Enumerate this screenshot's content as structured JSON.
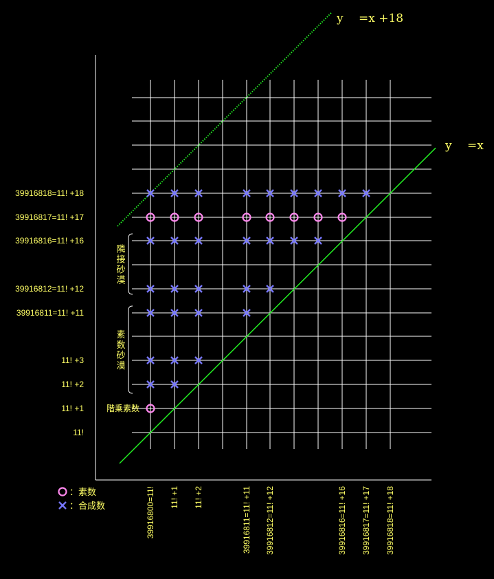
{
  "chart_data": {
    "type": "scatter",
    "title": "",
    "grid": true,
    "x": [
      {
        "label": "39916800=11!",
        "value": 0
      },
      {
        "label": "11! +1",
        "value": 1
      },
      {
        "label": "11! +2",
        "value": 2
      },
      {
        "label": "",
        "value": 3
      },
      {
        "label": "39916811=11! +11",
        "value": 11
      },
      {
        "label": "39916812=11! +12",
        "value": 12
      },
      {
        "label": "",
        "value": 13
      },
      {
        "label": "",
        "value": 14
      },
      {
        "label": "39916816=11! +16",
        "value": 16
      },
      {
        "label": "39916817=11! +17",
        "value": 17
      },
      {
        "label": "39916818=11! +18",
        "value": 18
      }
    ],
    "y": [
      {
        "label": "11!",
        "value": 0
      },
      {
        "label": "11! +1",
        "value": 1
      },
      {
        "label": "11! +2",
        "value": 2
      },
      {
        "label": "11! +3",
        "value": 3
      },
      {
        "label": "",
        "value": 4
      },
      {
        "label": "39916811=11! +11",
        "value": 11
      },
      {
        "label": "39916812=11! +12",
        "value": 12
      },
      {
        "label": "",
        "value": 13
      },
      {
        "label": "39916816=11! +16",
        "value": 16
      },
      {
        "label": "39916817=11! +17",
        "value": 17
      },
      {
        "label": "39916818=11! +18",
        "value": 18
      },
      {
        "label": "",
        "value": 19
      },
      {
        "label": "",
        "value": 20
      },
      {
        "label": "",
        "value": 21
      },
      {
        "label": "",
        "value": 22
      }
    ],
    "points": [
      {
        "x": 0,
        "y": 1,
        "kind": "prime"
      },
      {
        "x": 0,
        "y": 2,
        "kind": "composite"
      },
      {
        "x": 1,
        "y": 2,
        "kind": "composite"
      },
      {
        "x": 0,
        "y": 3,
        "kind": "composite"
      },
      {
        "x": 1,
        "y": 3,
        "kind": "composite"
      },
      {
        "x": 2,
        "y": 3,
        "kind": "composite"
      },
      {
        "x": 0,
        "y": 11,
        "kind": "composite"
      },
      {
        "x": 1,
        "y": 11,
        "kind": "composite"
      },
      {
        "x": 2,
        "y": 11,
        "kind": "composite"
      },
      {
        "x": 11,
        "y": 11,
        "kind": "composite"
      },
      {
        "x": 0,
        "y": 12,
        "kind": "composite"
      },
      {
        "x": 1,
        "y": 12,
        "kind": "composite"
      },
      {
        "x": 2,
        "y": 12,
        "kind": "composite"
      },
      {
        "x": 11,
        "y": 12,
        "kind": "composite"
      },
      {
        "x": 12,
        "y": 12,
        "kind": "composite"
      },
      {
        "x": 0,
        "y": 16,
        "kind": "composite"
      },
      {
        "x": 1,
        "y": 16,
        "kind": "composite"
      },
      {
        "x": 2,
        "y": 16,
        "kind": "composite"
      },
      {
        "x": 11,
        "y": 16,
        "kind": "composite"
      },
      {
        "x": 12,
        "y": 16,
        "kind": "composite"
      },
      {
        "x": 13,
        "y": 16,
        "kind": "composite"
      },
      {
        "x": 14,
        "y": 16,
        "kind": "composite"
      },
      {
        "x": 0,
        "y": 17,
        "kind": "prime"
      },
      {
        "x": 1,
        "y": 17,
        "kind": "prime"
      },
      {
        "x": 2,
        "y": 17,
        "kind": "prime"
      },
      {
        "x": 11,
        "y": 17,
        "kind": "prime"
      },
      {
        "x": 12,
        "y": 17,
        "kind": "prime"
      },
      {
        "x": 13,
        "y": 17,
        "kind": "prime"
      },
      {
        "x": 14,
        "y": 17,
        "kind": "prime"
      },
      {
        "x": 16,
        "y": 17,
        "kind": "prime"
      },
      {
        "x": 0,
        "y": 18,
        "kind": "composite"
      },
      {
        "x": 1,
        "y": 18,
        "kind": "composite"
      },
      {
        "x": 2,
        "y": 18,
        "kind": "composite"
      },
      {
        "x": 11,
        "y": 18,
        "kind": "composite"
      },
      {
        "x": 12,
        "y": 18,
        "kind": "composite"
      },
      {
        "x": 13,
        "y": 18,
        "kind": "composite"
      },
      {
        "x": 14,
        "y": 18,
        "kind": "composite"
      },
      {
        "x": 16,
        "y": 18,
        "kind": "composite"
      },
      {
        "x": 17,
        "y": 18,
        "kind": "composite"
      }
    ],
    "lines": [
      {
        "label": "y 　=x",
        "offset": 0,
        "style": "solid"
      },
      {
        "label": "y 　=x +18",
        "offset": 18,
        "style": "dotted"
      }
    ],
    "annotations": {
      "factorial_prime": "階乗素数",
      "adjacent_desert": "隣接砂漠",
      "prime_desert": "素数砂漠"
    },
    "legend": [
      {
        "kind": "prime",
        "label": "：素数"
      },
      {
        "kind": "composite",
        "label": "：合成数"
      }
    ]
  },
  "colors": {
    "background": "#000000",
    "grid": "#ffffff",
    "text": "#ffff66",
    "prime": "#ff88ee",
    "composite": "#7777ff",
    "diagonal": "#22ee22"
  }
}
